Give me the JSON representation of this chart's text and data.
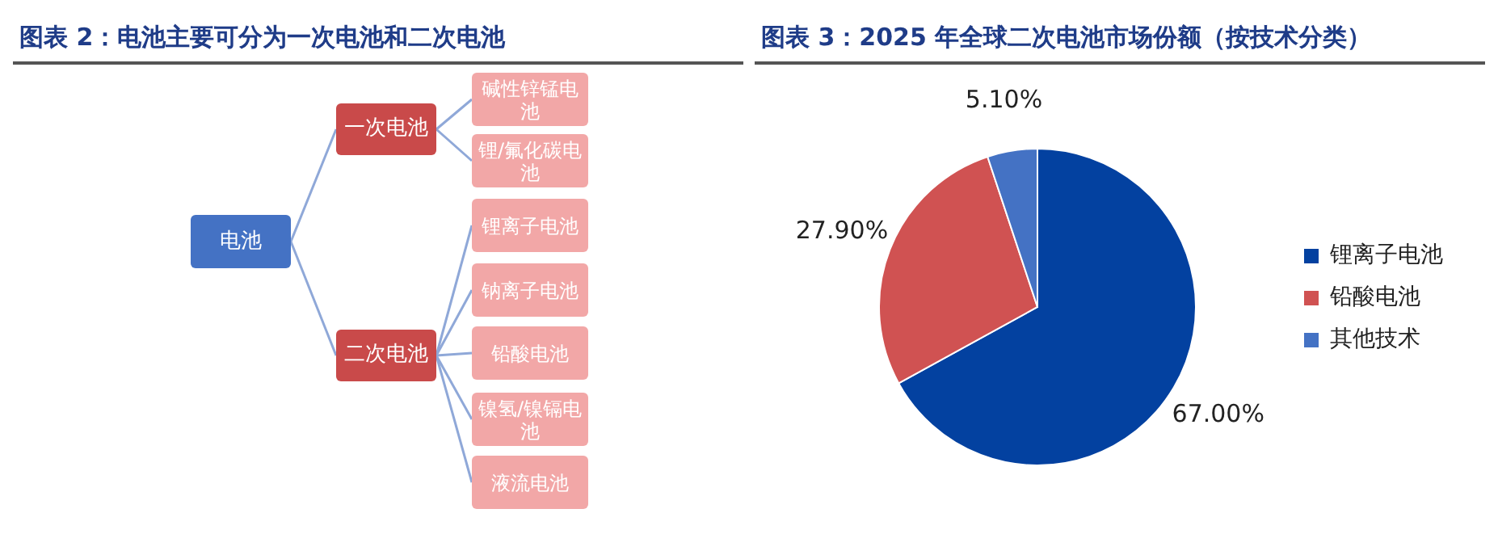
{
  "chart_data": [
    {
      "type": "other",
      "title": "图表 2：电池主要可分为一次电池和二次电池",
      "annotations": [
        "电池",
        "一次电池",
        "二次电池",
        "碱性锌锰电池",
        "锂/氟化碳电池",
        "锂离子电池",
        "钠离子电池",
        "铅酸电池",
        "镍氢/镍镉电池",
        "液流电池"
      ]
    },
    {
      "type": "pie",
      "title": "图表 3：2025 年全球二次电池市场份额（按技术分类）",
      "categories": [
        "锂离子电池",
        "铅酸电池",
        "其他技术"
      ],
      "values": [
        67,
        27.9,
        5.1
      ],
      "colors": [
        "#0341a0",
        "#d05252",
        "#4472c4"
      ],
      "value_labels": [
        "67.00%",
        "27.90%",
        "5.10%"
      ],
      "legend": "right"
    }
  ]
}
